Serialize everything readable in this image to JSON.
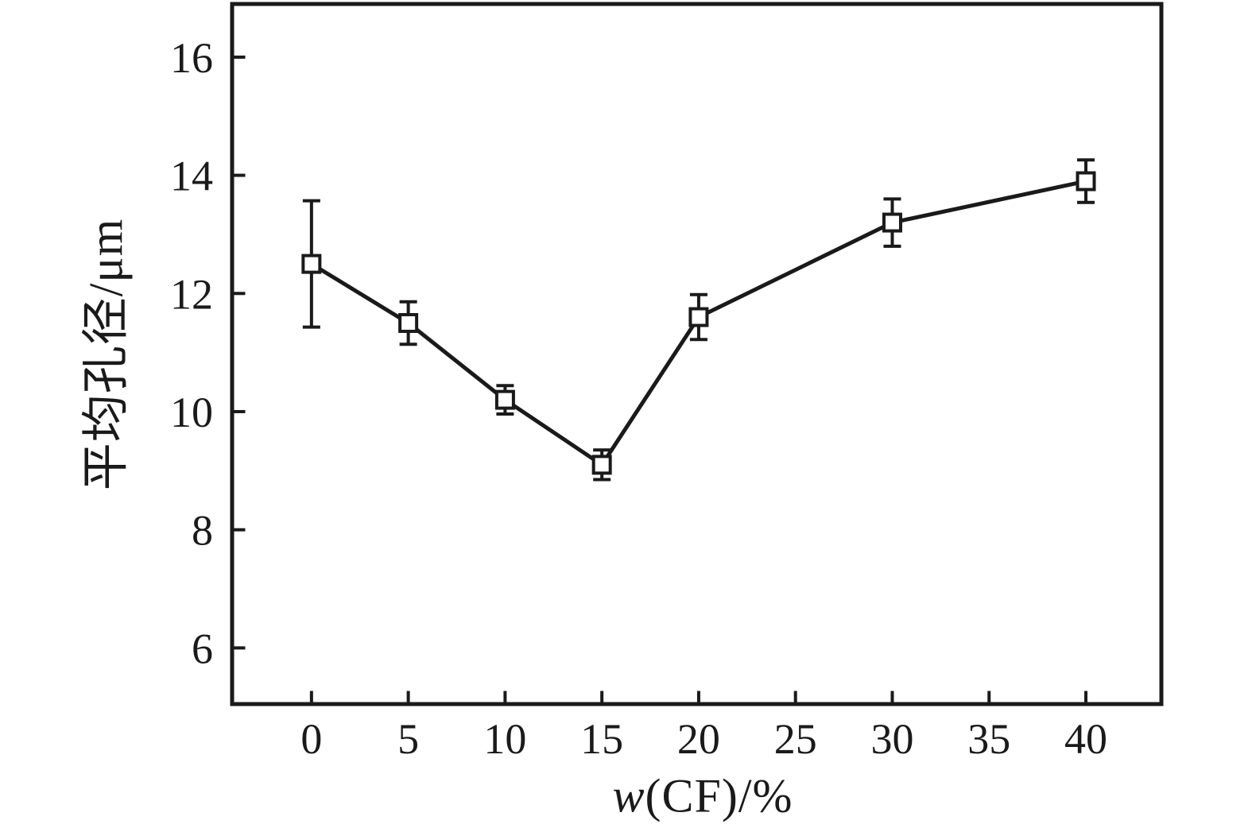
{
  "chart_data": {
    "type": "line",
    "title": "",
    "xlabel_italic": "w",
    "xlabel_rest": "(CF)/%",
    "ylabel": "平均孔径/μm",
    "x_ticks": [
      0,
      5,
      10,
      15,
      20,
      25,
      30,
      35,
      40
    ],
    "y_ticks": [
      6,
      8,
      10,
      12,
      14,
      16
    ],
    "xlim": [
      -4.1,
      43.9
    ],
    "ylim": [
      5.05,
      16.9
    ],
    "grid": false,
    "legend_position": "none",
    "marker": "open-square",
    "line_color": "#1a1a1a",
    "marker_fill": "#ffffff",
    "background": "#ffffff",
    "series": [
      {
        "name": "平均孔径",
        "x": [
          0,
          5,
          10,
          15,
          20,
          30,
          40
        ],
        "y": [
          12.5,
          11.5,
          10.2,
          9.1,
          11.6,
          13.2,
          13.9
        ],
        "y_err": [
          1.07,
          0.36,
          0.24,
          0.25,
          0.38,
          0.4,
          0.36
        ]
      }
    ]
  }
}
